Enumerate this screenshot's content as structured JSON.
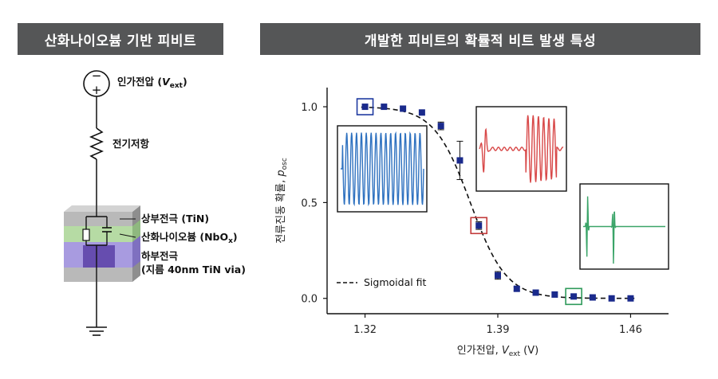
{
  "left_panel": {
    "title": "산화나이오븀 기반 피비트",
    "voltage_label": "인가전압 (",
    "voltage_symbol": "V",
    "voltage_sub": "ext",
    "voltage_close": ")",
    "resistor_label": "전기저항",
    "top_electrode": "상부전극 (TiN)",
    "oxide_prefix": "산화나이오븀 (NbO",
    "oxide_sub": "x",
    "oxide_suffix": ")",
    "bottom_electrode_1": "하부전극",
    "bottom_electrode_2": "(지름 40nm TiN via)",
    "source_minus": "−",
    "source_plus": "+"
  },
  "right_panel": {
    "title": "개발한 피비트의 확률적 비트 발생 특성"
  },
  "colors": {
    "banner": "#555657",
    "markers": "#1a2a8c",
    "blue_wave": "#2f72c0",
    "red_wave": "#d84848",
    "green_wave": "#3aa468",
    "layer_gray": "#b9b9b9",
    "layer_green": "#b6dba4",
    "layer_purple": "#a89be0"
  },
  "chart_data": {
    "type": "scatter",
    "xlabel_prefix": "인가전압, ",
    "xlabel_symbol": "V",
    "xlabel_sub": "ext",
    "xlabel_unit": " (V)",
    "ylabel_prefix": "전류진동 확률, ",
    "ylabel_symbol": "p",
    "ylabel_sub": "osc",
    "xlim": [
      1.3,
      1.48
    ],
    "ylim": [
      -0.08,
      1.1
    ],
    "x_ticks": [
      1.32,
      1.39,
      1.46
    ],
    "x_tick_labels": [
      "1.32",
      "1.39",
      "1.46"
    ],
    "y_ticks": [
      0.0,
      0.5,
      1.0
    ],
    "y_tick_labels": [
      "0.0",
      "0.5",
      "1.0"
    ],
    "legend": "Sigmoidal fit",
    "legend_position": "lower-left",
    "series": [
      {
        "x": [
          1.32,
          1.33,
          1.34,
          1.35,
          1.36,
          1.37,
          1.38,
          1.39,
          1.4,
          1.41,
          1.42,
          1.43,
          1.44,
          1.45,
          1.46
        ],
        "y": [
          1.0,
          1.0,
          0.99,
          0.97,
          0.9,
          0.72,
          0.38,
          0.12,
          0.05,
          0.03,
          0.02,
          0.01,
          0.005,
          0.0,
          0.0
        ],
        "err": [
          0,
          0,
          0,
          0,
          0.02,
          0.1,
          0.02,
          0.02,
          0.01,
          0.01,
          0,
          0,
          0,
          0,
          0
        ]
      }
    ],
    "fit": {
      "center": 1.3755,
      "width": 0.0095
    },
    "highlight_boxes": [
      {
        "x": 1.32,
        "y": 1.0,
        "color": "#1f3aa0"
      },
      {
        "x": 1.38,
        "y": 0.38,
        "color": "#c23a3a"
      },
      {
        "x": 1.43,
        "y": 0.01,
        "color": "#2e9a5a"
      }
    ],
    "insets": [
      {
        "name": "inset-oscillation-blue",
        "wave": "oscillation",
        "color": "#2f72c0"
      },
      {
        "name": "inset-burst-red",
        "wave": "burst",
        "color": "#d84848"
      },
      {
        "name": "inset-spike-green",
        "wave": "spike",
        "color": "#3aa468"
      }
    ]
  }
}
